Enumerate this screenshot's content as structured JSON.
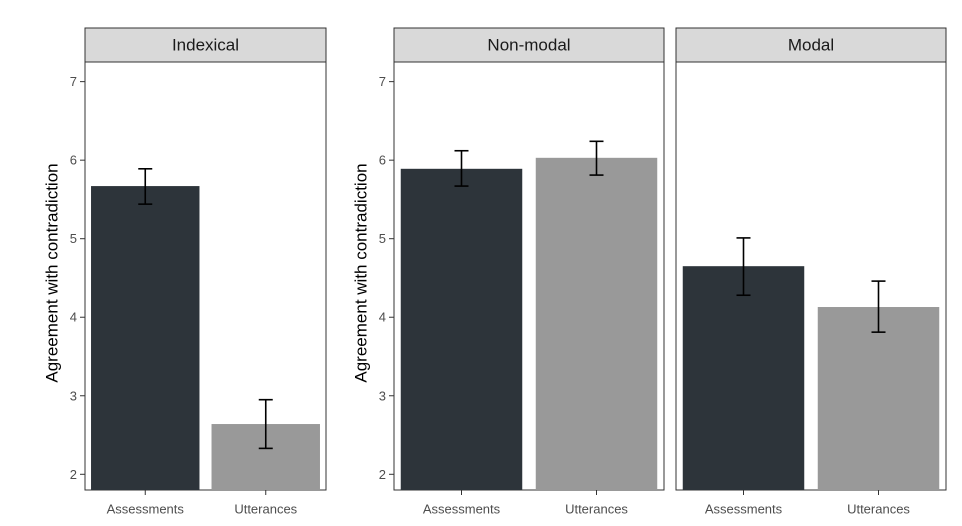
{
  "chart_data": [
    {
      "type": "bar",
      "title": "Indexical",
      "ylabel": "Agreement with contradiction",
      "xlabel": "",
      "ylim": [
        1.8,
        7.25
      ],
      "yticks": [
        2,
        3,
        4,
        5,
        6,
        7
      ],
      "categories": [
        "Assessments",
        "Utterances"
      ],
      "values": [
        5.67,
        2.64
      ],
      "error_low": [
        5.44,
        2.33
      ],
      "error_high": [
        5.89,
        2.95
      ],
      "bar_colors": [
        "#2d343a",
        "#999999"
      ],
      "grid": false,
      "legend": "none"
    },
    {
      "type": "bar",
      "title": "Non-modal",
      "ylabel": "Agreement with contradiction",
      "xlabel": "",
      "ylim": [
        1.8,
        7.25
      ],
      "yticks": [
        2,
        3,
        4,
        5,
        6,
        7
      ],
      "categories": [
        "Assessments",
        "Utterances"
      ],
      "values": [
        5.89,
        6.03
      ],
      "error_low": [
        5.67,
        5.81
      ],
      "error_high": [
        6.12,
        6.24
      ],
      "bar_colors": [
        "#2d343a",
        "#999999"
      ],
      "grid": false,
      "legend": "none"
    },
    {
      "type": "bar",
      "title": "Modal",
      "ylabel": "",
      "xlabel": "",
      "ylim": [
        1.8,
        7.25
      ],
      "yticks": [
        2,
        3,
        4,
        5,
        6,
        7
      ],
      "categories": [
        "Assessments",
        "Utterances"
      ],
      "values": [
        4.65,
        4.13
      ],
      "error_low": [
        4.28,
        3.81
      ],
      "error_high": [
        5.01,
        4.46
      ],
      "bar_colors": [
        "#2d343a",
        "#999999"
      ],
      "grid": false,
      "legend": "none"
    }
  ]
}
